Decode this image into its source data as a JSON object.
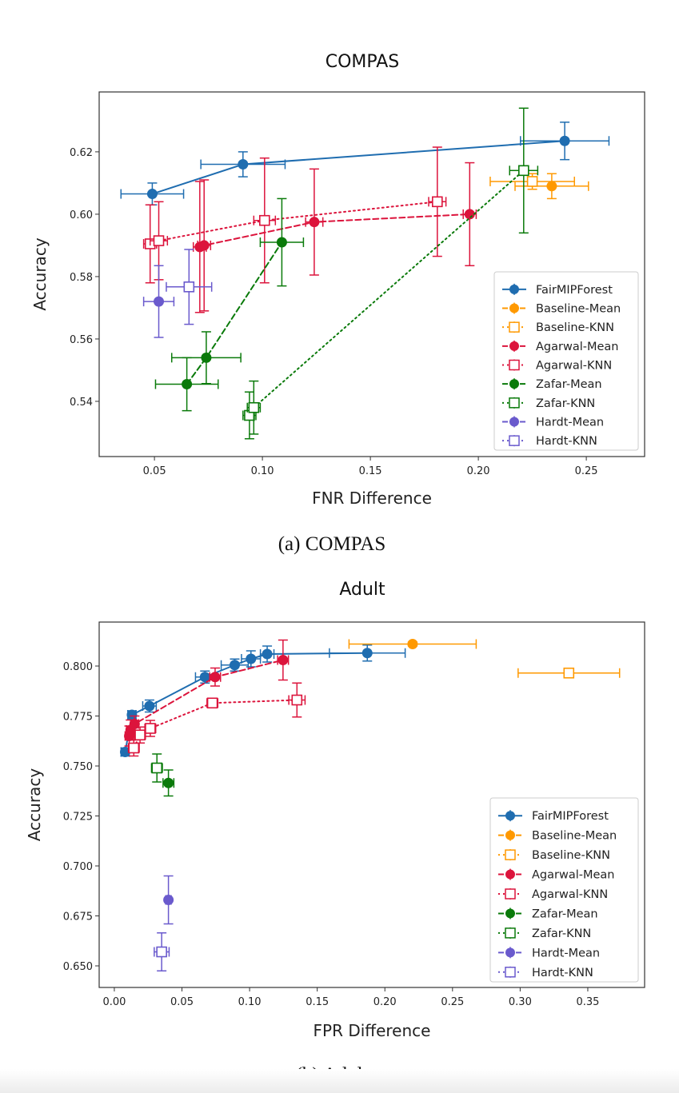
{
  "captions": {
    "a": "(a) COMPAS",
    "b": "(b) Adult"
  },
  "colors": {
    "FairMIPForest": "#1f6db0",
    "Baseline": "#ff9900",
    "Agarwal": "#dc143c",
    "Zafar": "#0a7a0a",
    "Hardt": "#6a5acd"
  },
  "chart_data": [
    {
      "type": "scatter",
      "title": "COMPAS",
      "xlabel": "FNR Difference",
      "ylabel": "Accuracy",
      "xlim": [
        0.0244,
        0.277
      ],
      "ylim": [
        0.5223,
        0.6392
      ],
      "xticks": [
        0.05,
        0.1,
        0.15,
        0.2,
        0.25
      ],
      "xtick_labels": [
        "0.05",
        "0.10",
        "0.15",
        "0.20",
        "0.25"
      ],
      "yticks": [
        0.54,
        0.56,
        0.58,
        0.6,
        0.62
      ],
      "ytick_labels": [
        "0.54",
        "0.56",
        "0.58",
        "0.60",
        "0.62"
      ],
      "legend_position": "lower-right",
      "series": [
        {
          "name": "FairMIPForest",
          "color_key": "FairMIPForest",
          "marker": "circle",
          "line": "solid",
          "points": [
            [
              0.049,
              0.6065,
              0.0145,
              0.0035
            ],
            [
              0.091,
              0.616,
              0.0195,
              0.004
            ],
            [
              0.24,
              0.6235,
              0.0205,
              0.006
            ]
          ]
        },
        {
          "name": "Baseline-Mean",
          "color_key": "Baseline",
          "marker": "circle",
          "line": "dashed",
          "points": [
            [
              0.234,
              0.609,
              0.017,
              0.004
            ]
          ]
        },
        {
          "name": "Baseline-KNN",
          "color_key": "Baseline",
          "marker": "square",
          "line": "dotted",
          "points": [
            [
              0.225,
              0.6105,
              0.0195,
              0.0025
            ]
          ]
        },
        {
          "name": "Agarwal-Mean",
          "color_key": "Agarwal",
          "marker": "circle",
          "line": "dashed",
          "points": [
            [
              0.071,
              0.5895,
              0.003,
              0.021
            ],
            [
              0.073,
              0.59,
              0.003,
              0.021
            ],
            [
              0.124,
              0.5975,
              0.004,
              0.017
            ],
            [
              0.196,
              0.6,
              0.003,
              0.0165
            ]
          ]
        },
        {
          "name": "Agarwal-KNN",
          "color_key": "Agarwal",
          "marker": "square",
          "line": "dotted",
          "points": [
            [
              0.048,
              0.5905,
              0.003,
              0.0125
            ],
            [
              0.052,
              0.5915,
              0.004,
              0.0125
            ],
            [
              0.101,
              0.598,
              0.005,
              0.02
            ],
            [
              0.181,
              0.604,
              0.004,
              0.0175
            ]
          ]
        },
        {
          "name": "Zafar-Mean",
          "color_key": "Zafar",
          "marker": "circle",
          "line": "dashed",
          "points": [
            [
              0.065,
              0.5455,
              0.0145,
              0.0085
            ],
            [
              0.074,
              0.554,
              0.016,
              0.0083
            ],
            [
              0.109,
              0.591,
              0.01,
              0.014
            ]
          ]
        },
        {
          "name": "Zafar-KNN",
          "color_key": "Zafar",
          "marker": "square",
          "line": "dotted",
          "points": [
            [
              0.094,
              0.5355,
              0.003,
              0.0075
            ],
            [
              0.096,
              0.538,
              0.003,
              0.0085
            ],
            [
              0.221,
              0.614,
              0.0065,
              0.02
            ]
          ]
        },
        {
          "name": "Hardt-Mean",
          "color_key": "Hardt",
          "marker": "circle",
          "line": "dashed",
          "points": [
            [
              0.052,
              0.572,
              0.007,
              0.0115
            ]
          ]
        },
        {
          "name": "Hardt-KNN",
          "color_key": "Hardt",
          "marker": "square",
          "line": "dotted",
          "points": [
            [
              0.066,
              0.5767,
              0.0105,
              0.012
            ]
          ]
        }
      ]
    },
    {
      "type": "scatter",
      "title": "Adult",
      "xlabel": "FPR Difference",
      "ylabel": "Accuracy",
      "xlim": [
        -0.0112,
        0.392
      ],
      "ylim": [
        0.6392,
        0.822
      ],
      "xticks": [
        0.0,
        0.05,
        0.1,
        0.15,
        0.2,
        0.25,
        0.3,
        0.35
      ],
      "xtick_labels": [
        "0.00",
        "0.05",
        "0.10",
        "0.15",
        "0.20",
        "0.25",
        "0.30",
        "0.35"
      ],
      "yticks": [
        0.65,
        0.675,
        0.7,
        0.725,
        0.75,
        0.775,
        0.8
      ],
      "ytick_labels": [
        "0.650",
        "0.675",
        "0.700",
        "0.725",
        "0.750",
        "0.775",
        "0.800"
      ],
      "legend_position": "lower-right",
      "series": [
        {
          "name": "FairMIPForest",
          "color_key": "FairMIPForest",
          "marker": "circle",
          "line": "solid",
          "points": [
            [
              0.008,
              0.757,
              0.003,
              0.002
            ],
            [
              0.013,
              0.7756,
              0.003,
              0.002
            ],
            [
              0.026,
              0.78,
              0.005,
              0.003
            ],
            [
              0.067,
              0.7945,
              0.007,
              0.003
            ],
            [
              0.089,
              0.8005,
              0.01,
              0.003
            ],
            [
              0.101,
              0.8036,
              0.007,
              0.004
            ],
            [
              0.113,
              0.806,
              0.005,
              0.004
            ],
            [
              0.187,
              0.8065,
              0.028,
              0.004
            ]
          ]
        },
        {
          "name": "Baseline-Mean",
          "color_key": "Baseline",
          "marker": "circle",
          "line": "dashed",
          "points": [
            [
              0.2205,
              0.811,
              0.047,
              0.001
            ]
          ]
        },
        {
          "name": "Baseline-KNN",
          "color_key": "Baseline",
          "marker": "square",
          "line": "dotted",
          "points": [
            [
              0.336,
              0.7965,
              0.0375,
              0.0015
            ]
          ]
        },
        {
          "name": "Agarwal-Mean",
          "color_key": "Agarwal",
          "marker": "circle",
          "line": "dashed",
          "points": [
            [
              0.011,
              0.765,
              0.003,
              0.005
            ],
            [
              0.012,
              0.768,
              0.003,
              0.005
            ],
            [
              0.015,
              0.771,
              0.003,
              0.004
            ],
            [
              0.0745,
              0.7945,
              0.004,
              0.0045
            ],
            [
              0.1247,
              0.803,
              0.004,
              0.01
            ]
          ]
        },
        {
          "name": "Agarwal-KNN",
          "color_key": "Agarwal",
          "marker": "square",
          "line": "dotted",
          "points": [
            [
              0.0144,
              0.759,
              0.004,
              0.004
            ],
            [
              0.019,
              0.7655,
              0.004,
              0.004
            ],
            [
              0.0266,
              0.7688,
              0.004,
              0.004
            ],
            [
              0.0725,
              0.7815,
              0.004,
              0.002
            ],
            [
              0.135,
              0.783,
              0.006,
              0.0085
            ]
          ]
        },
        {
          "name": "Zafar-Mean",
          "color_key": "Zafar",
          "marker": "circle",
          "line": "dashed",
          "points": [
            [
              0.04,
              0.7415,
              0.004,
              0.0065
            ]
          ]
        },
        {
          "name": "Zafar-KNN",
          "color_key": "Zafar",
          "marker": "square",
          "line": "dotted",
          "points": [
            [
              0.0315,
              0.749,
              0.004,
              0.007
            ]
          ]
        },
        {
          "name": "Hardt-Mean",
          "color_key": "Hardt",
          "marker": "circle",
          "line": "dashed",
          "points": [
            [
              0.04,
              0.683,
              0.002,
              0.012
            ]
          ]
        },
        {
          "name": "Hardt-KNN",
          "color_key": "Hardt",
          "marker": "square",
          "line": "dotted",
          "points": [
            [
              0.035,
              0.657,
              0.0055,
              0.0095
            ]
          ]
        }
      ]
    }
  ]
}
